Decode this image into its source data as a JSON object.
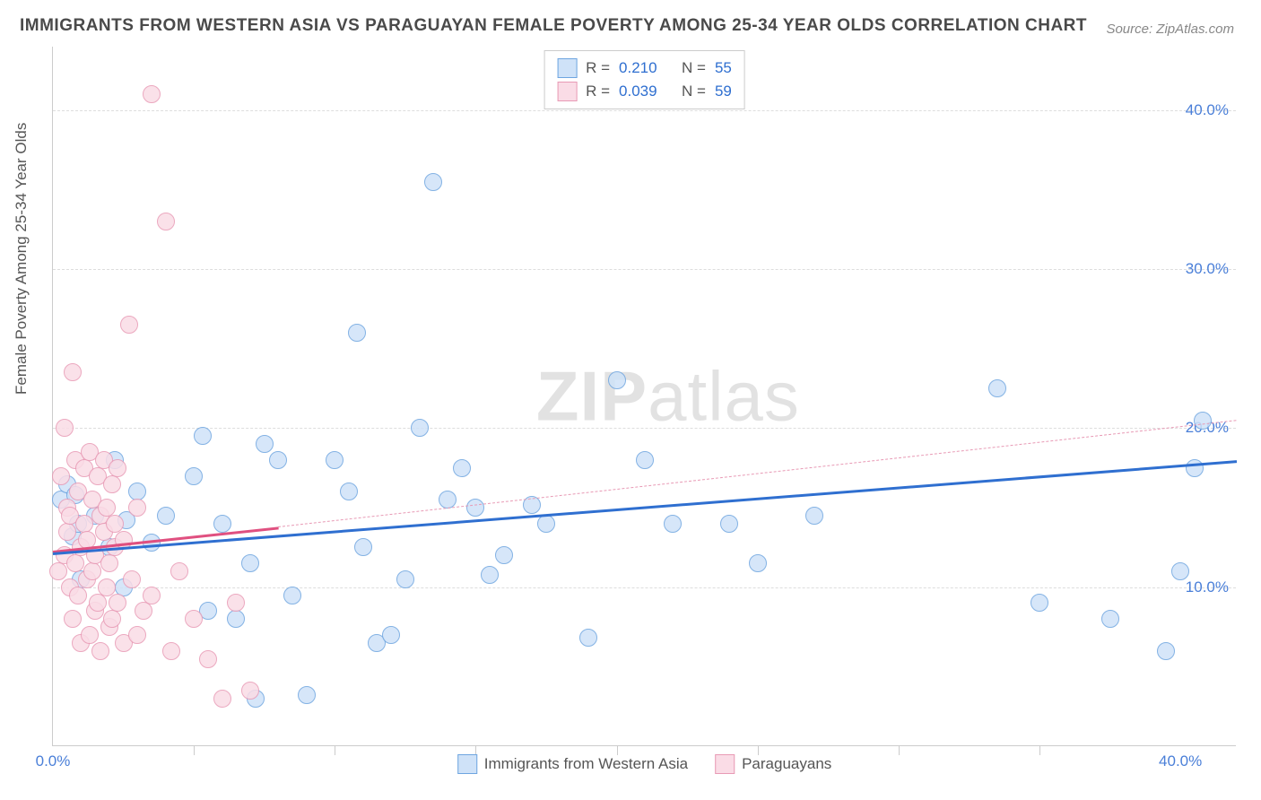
{
  "title": "IMMIGRANTS FROM WESTERN ASIA VS PARAGUAYAN FEMALE POVERTY AMONG 25-34 YEAR OLDS CORRELATION CHART",
  "source": "Source: ZipAtlas.com",
  "ylabel": "Female Poverty Among 25-34 Year Olds",
  "watermark_zip": "ZIP",
  "watermark_atlas": "atlas",
  "chart": {
    "type": "scatter",
    "xlim": [
      0,
      42
    ],
    "ylim": [
      0,
      44
    ],
    "ytick_values": [
      10,
      20,
      30,
      40
    ],
    "ytick_labels": [
      "10.0%",
      "20.0%",
      "30.0%",
      "40.0%"
    ],
    "ytick_color": "#4a7fd8",
    "xtick_values_minor": [
      5,
      10,
      15,
      20,
      25,
      30,
      35
    ],
    "xtick_origin_label": "0.0%",
    "xtick_max_label": "40.0%",
    "xtick_color": "#4a7fd8",
    "grid_color": "#dddddd",
    "background_color": "#ffffff",
    "point_radius": 10,
    "series": [
      {
        "name": "Immigrants from Western Asia",
        "color_fill": "#cfe2f8",
        "color_stroke": "#6ea5e0",
        "r_value": "0.210",
        "n_value": "55",
        "trend": {
          "x1": 0,
          "y1": 12.2,
          "x2": 42,
          "y2": 18.0,
          "color": "#2f6fd0",
          "width": 3,
          "dash": false
        },
        "points": [
          [
            0.3,
            15.5
          ],
          [
            0.5,
            16.5
          ],
          [
            0.7,
            13.2
          ],
          [
            0.8,
            15.8
          ],
          [
            0.9,
            14.0
          ],
          [
            1.0,
            10.5
          ],
          [
            1.5,
            14.5
          ],
          [
            2.0,
            12.5
          ],
          [
            2.2,
            18.0
          ],
          [
            2.5,
            10.0
          ],
          [
            2.6,
            14.2
          ],
          [
            3.0,
            16.0
          ],
          [
            3.5,
            12.8
          ],
          [
            4.0,
            14.5
          ],
          [
            5.0,
            17.0
          ],
          [
            5.3,
            19.5
          ],
          [
            5.5,
            8.5
          ],
          [
            6.0,
            14.0
          ],
          [
            6.5,
            8.0
          ],
          [
            7.0,
            11.5
          ],
          [
            7.2,
            3.0
          ],
          [
            7.5,
            19.0
          ],
          [
            8.0,
            18.0
          ],
          [
            8.5,
            9.5
          ],
          [
            9.0,
            3.2
          ],
          [
            10.0,
            18.0
          ],
          [
            10.5,
            16.0
          ],
          [
            10.8,
            26.0
          ],
          [
            11.0,
            12.5
          ],
          [
            11.5,
            6.5
          ],
          [
            12.0,
            7.0
          ],
          [
            12.5,
            10.5
          ],
          [
            13.0,
            20.0
          ],
          [
            13.5,
            35.5
          ],
          [
            14.0,
            15.5
          ],
          [
            14.5,
            17.5
          ],
          [
            15.0,
            15.0
          ],
          [
            15.5,
            10.8
          ],
          [
            16.0,
            12.0
          ],
          [
            17.0,
            15.2
          ],
          [
            17.5,
            14.0
          ],
          [
            19.0,
            6.8
          ],
          [
            20.0,
            23.0
          ],
          [
            21.0,
            18.0
          ],
          [
            22.0,
            14.0
          ],
          [
            24.0,
            14.0
          ],
          [
            25.0,
            11.5
          ],
          [
            27.0,
            14.5
          ],
          [
            33.5,
            22.5
          ],
          [
            35.0,
            9.0
          ],
          [
            37.5,
            8.0
          ],
          [
            39.5,
            6.0
          ],
          [
            40.0,
            11.0
          ],
          [
            40.5,
            17.5
          ],
          [
            40.8,
            20.5
          ]
        ]
      },
      {
        "name": "Paraguayans",
        "color_fill": "#fadce6",
        "color_stroke": "#e89ab5",
        "r_value": "0.039",
        "n_value": "59",
        "trend_solid": {
          "x1": 0,
          "y1": 12.3,
          "x2": 8,
          "y2": 13.8,
          "color": "#e05080",
          "width": 3,
          "dash": false
        },
        "trend_dash": {
          "x1": 8,
          "y1": 13.8,
          "x2": 42,
          "y2": 20.5,
          "color": "#e89ab5",
          "width": 1,
          "dash": true
        },
        "points": [
          [
            0.2,
            11.0
          ],
          [
            0.3,
            17.0
          ],
          [
            0.4,
            12.0
          ],
          [
            0.4,
            20.0
          ],
          [
            0.5,
            13.5
          ],
          [
            0.5,
            15.0
          ],
          [
            0.6,
            10.0
          ],
          [
            0.6,
            14.5
          ],
          [
            0.7,
            23.5
          ],
          [
            0.7,
            8.0
          ],
          [
            0.8,
            11.5
          ],
          [
            0.8,
            18.0
          ],
          [
            0.9,
            9.5
          ],
          [
            0.9,
            16.0
          ],
          [
            1.0,
            12.5
          ],
          [
            1.0,
            6.5
          ],
          [
            1.1,
            17.5
          ],
          [
            1.1,
            14.0
          ],
          [
            1.2,
            10.5
          ],
          [
            1.2,
            13.0
          ],
          [
            1.3,
            7.0
          ],
          [
            1.3,
            18.5
          ],
          [
            1.4,
            11.0
          ],
          [
            1.4,
            15.5
          ],
          [
            1.5,
            8.5
          ],
          [
            1.5,
            12.0
          ],
          [
            1.6,
            17.0
          ],
          [
            1.6,
            9.0
          ],
          [
            1.7,
            14.5
          ],
          [
            1.7,
            6.0
          ],
          [
            1.8,
            13.5
          ],
          [
            1.8,
            18.0
          ],
          [
            1.9,
            10.0
          ],
          [
            1.9,
            15.0
          ],
          [
            2.0,
            7.5
          ],
          [
            2.0,
            11.5
          ],
          [
            2.1,
            16.5
          ],
          [
            2.1,
            8.0
          ],
          [
            2.2,
            12.5
          ],
          [
            2.2,
            14.0
          ],
          [
            2.3,
            9.0
          ],
          [
            2.3,
            17.5
          ],
          [
            2.5,
            13.0
          ],
          [
            2.5,
            6.5
          ],
          [
            2.7,
            26.5
          ],
          [
            2.8,
            10.5
          ],
          [
            3.0,
            15.0
          ],
          [
            3.0,
            7.0
          ],
          [
            3.2,
            8.5
          ],
          [
            3.5,
            9.5
          ],
          [
            3.5,
            41.0
          ],
          [
            4.0,
            33.0
          ],
          [
            4.2,
            6.0
          ],
          [
            4.5,
            11.0
          ],
          [
            5.0,
            8.0
          ],
          [
            5.5,
            5.5
          ],
          [
            6.0,
            3.0
          ],
          [
            6.5,
            9.0
          ],
          [
            7.0,
            3.5
          ]
        ]
      }
    ],
    "legend_top_label_r": "R  =",
    "legend_top_label_n": "N  =",
    "legend_value_color": "#2f6fd0",
    "legend_bottom": [
      {
        "label": "Immigrants from Western Asia",
        "fill": "#cfe2f8",
        "stroke": "#6ea5e0"
      },
      {
        "label": "Paraguayans",
        "fill": "#fadce6",
        "stroke": "#e89ab5"
      }
    ]
  }
}
